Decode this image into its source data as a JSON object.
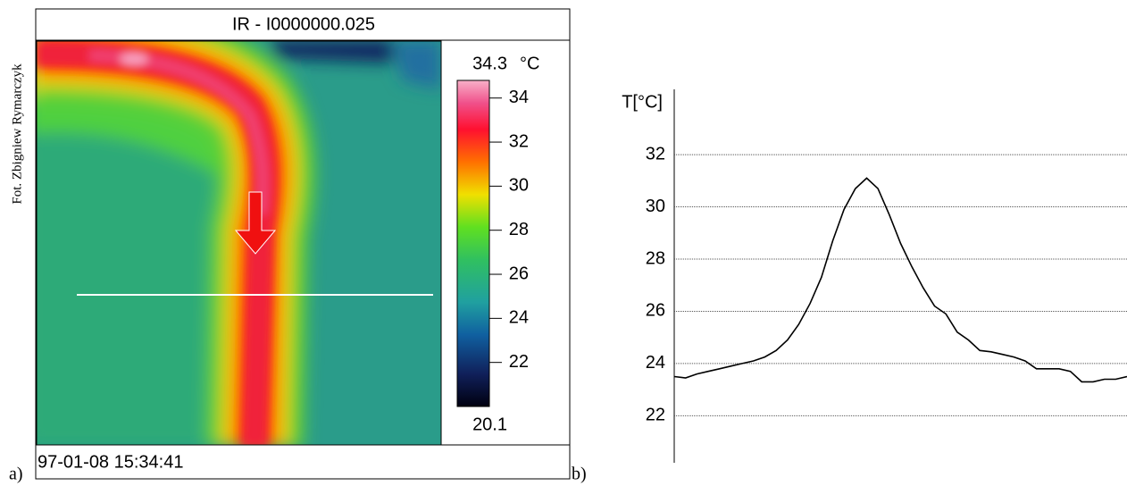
{
  "credit": "Fot. Zbigniew Rymarczyk",
  "panel_labels": [
    "a)",
    "b)"
  ],
  "chart_data": [
    {
      "type": "heatmap",
      "title": "IR - I0000000.025",
      "timestamp": "97-01-08 15:34:41",
      "max_label": "34.3",
      "min_label": "20.1",
      "unit": "°C",
      "clim": [
        20.0,
        34.8
      ],
      "cticks": [
        22,
        24,
        26,
        28,
        30,
        32,
        34
      ]
    },
    {
      "type": "line",
      "y_label": "T[°C]",
      "color": "#000000",
      "values": [
        23.5,
        23.45,
        23.6,
        23.7,
        23.8,
        23.9,
        24.0,
        24.1,
        24.25,
        24.5,
        24.9,
        25.5,
        26.3,
        27.3,
        28.7,
        29.9,
        30.7,
        31.1,
        30.7,
        29.7,
        28.6,
        27.7,
        26.9,
        26.2,
        25.9,
        25.2,
        24.9,
        24.5,
        24.45,
        24.35,
        24.25,
        24.1,
        23.8,
        23.8,
        23.8,
        23.7,
        23.3,
        23.3,
        23.4,
        23.4,
        23.5
      ],
      "ylim": [
        20.2,
        34.5
      ],
      "yticks": [
        22,
        24,
        26,
        28,
        30,
        32
      ],
      "grid": true
    }
  ]
}
